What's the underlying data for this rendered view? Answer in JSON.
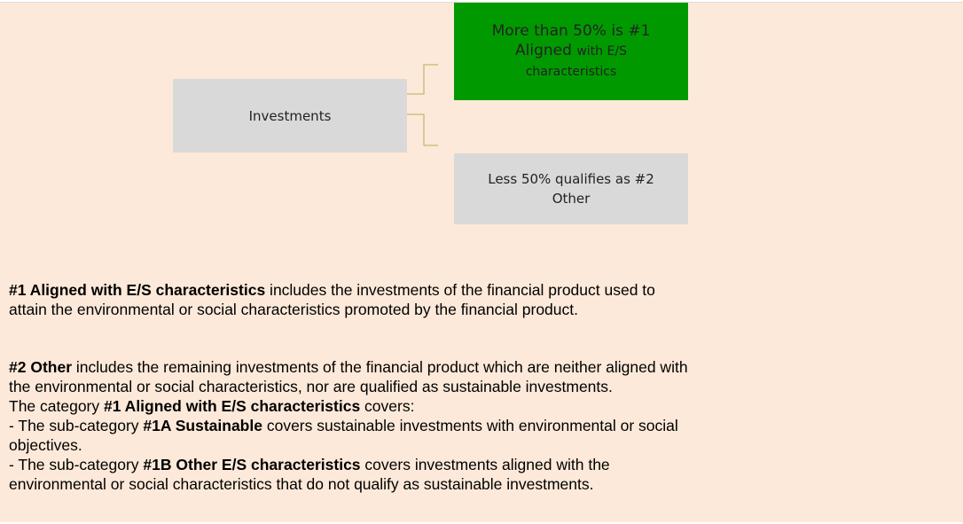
{
  "diagram": {
    "root": {
      "label": "Investments"
    },
    "children": [
      {
        "label_parts": [
          "More than 50% is #1 Aligned",
          "with E/S characteristics"
        ]
      },
      {
        "label": "Less 50% qualifies as #2 Other"
      }
    ]
  },
  "paragraphs": [
    [
      [
        {
          "text": "#1 Aligned with E/S characteristics",
          "bold": true
        },
        {
          "text": " includes the investments of the financial product used to"
        }
      ],
      [
        {
          "text": "attain the environmental or social characteristics promoted by the financial product."
        }
      ]
    ],
    [
      [
        {
          "text": "#2 Other",
          "bold": true
        },
        {
          "text": " includes the remaining investments of the financial product which are neither aligned with"
        }
      ],
      [
        {
          "text": "the environmental or social characteristics, nor are qualified as sustainable investments."
        }
      ],
      [
        {
          "text": "The category "
        },
        {
          "text": "#1 Aligned with E/S characteristics",
          "bold": true
        },
        {
          "text": " covers:"
        }
      ],
      [
        {
          "text": "- The sub-category "
        },
        {
          "text": "#1A Sustainable",
          "bold": true
        },
        {
          "text": " covers sustainable investments with environmental or social"
        }
      ],
      [
        {
          "text": "objectives."
        }
      ],
      [
        {
          "text": "- The sub-category "
        },
        {
          "text": "#1B Other E/S characteristics",
          "bold": true
        },
        {
          "text": " covers investments aligned with the"
        }
      ],
      [
        {
          "text": "environmental or social characteristics that do not qualify as sustainable investments."
        }
      ]
    ]
  ]
}
